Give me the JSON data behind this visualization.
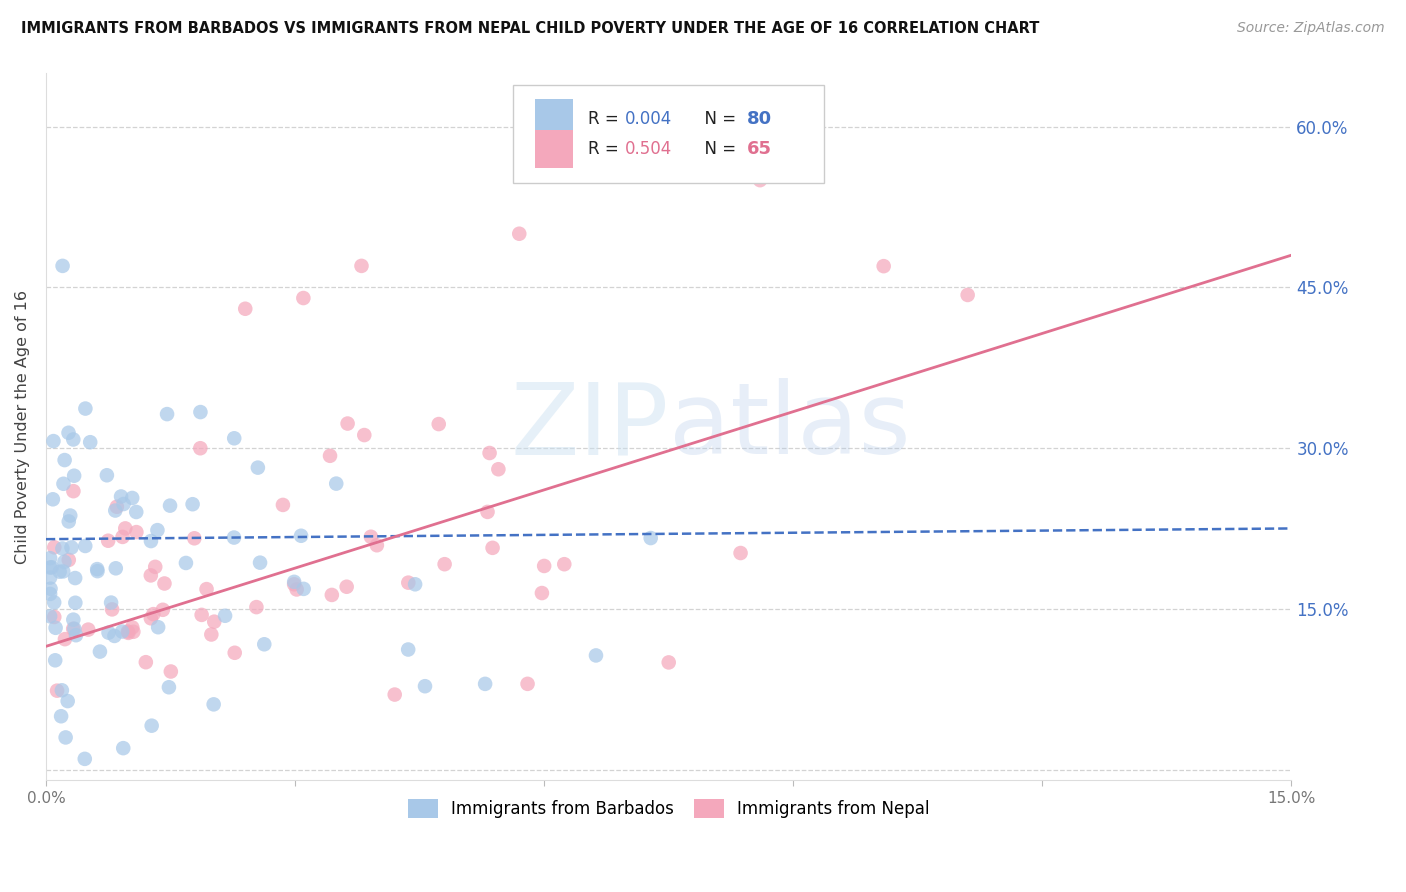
{
  "title": "IMMIGRANTS FROM BARBADOS VS IMMIGRANTS FROM NEPAL CHILD POVERTY UNDER THE AGE OF 16 CORRELATION CHART",
  "source": "Source: ZipAtlas.com",
  "ylabel": "Child Poverty Under the Age of 16",
  "xlim": [
    0.0,
    0.15
  ],
  "ylim": [
    -0.01,
    0.65
  ],
  "plot_ylim": [
    0.0,
    0.65
  ],
  "barbados_color": "#a8c8e8",
  "nepal_color": "#f4a8bc",
  "barbados_trend_color": "#4472C4",
  "nepal_trend_color": "#E07090",
  "grid_color": "#cccccc",
  "background_color": "#ffffff",
  "axis_label_color": "#4472C4",
  "title_color": "#111111",
  "source_color": "#999999",
  "watermark_color": "#dce8f5",
  "barbados_N": 80,
  "nepal_N": 65,
  "right_ytick_vals": [
    0.0,
    0.15,
    0.3,
    0.45,
    0.6
  ],
  "right_ytick_labels": [
    "",
    "15.0%",
    "30.0%",
    "45.0%",
    "60.0%"
  ],
  "xtick_vals": [
    0.0,
    0.03,
    0.06,
    0.09,
    0.12,
    0.15
  ],
  "xtick_labels": [
    "0.0%",
    "",
    "",
    "",
    "",
    "15.0%"
  ],
  "barbados_trend_start": 0.0,
  "barbados_trend_end": 0.15,
  "barbados_trend_y0": 0.215,
  "barbados_trend_y1": 0.225,
  "nepal_trend_start": 0.0,
  "nepal_trend_end": 0.15,
  "nepal_trend_y0": 0.115,
  "nepal_trend_y1": 0.48
}
